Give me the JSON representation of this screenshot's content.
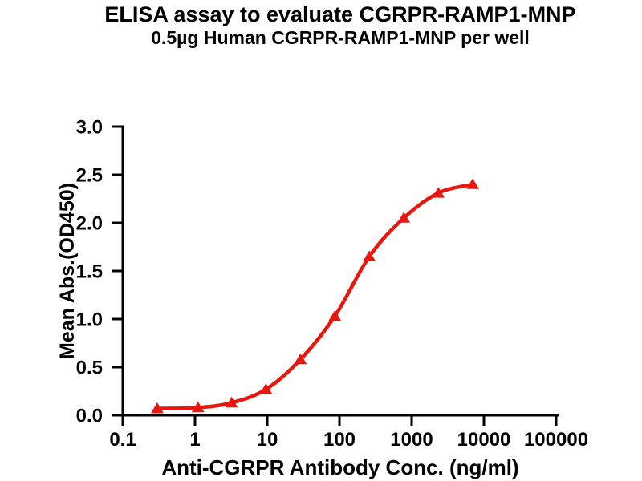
{
  "chart_data": {
    "type": "line",
    "title": "ELISA assay to evaluate CGRPR-RAMP1-MNP",
    "subtitle": "0.5µg Human CGRPR-RAMP1-MNP per well",
    "xlabel": "Anti-CGRPR Antibody Conc. (ng/ml)",
    "ylabel": "Mean Abs.(OD450)",
    "x_scale": "log10",
    "xlim": [
      0.1,
      100000
    ],
    "ylim": [
      0.0,
      3.0
    ],
    "x_ticks": [
      "0.1",
      "1",
      "10",
      "100",
      "1000",
      "10000",
      "100000"
    ],
    "y_ticks": [
      "0.0",
      "0.5",
      "1.0",
      "1.5",
      "2.0",
      "2.5",
      "3.0"
    ],
    "grid": false,
    "legend": "none",
    "axis_color": "#000000",
    "series": [
      {
        "marker": "triangle-up",
        "color": "#e8170e",
        "x": [
          0.3,
          1.1,
          3.2,
          9.6,
          28.8,
          86.4,
          259,
          778,
          2333,
          7000
        ],
        "y": [
          0.07,
          0.08,
          0.13,
          0.27,
          0.58,
          1.03,
          1.65,
          2.05,
          2.31,
          2.4
        ]
      }
    ]
  }
}
